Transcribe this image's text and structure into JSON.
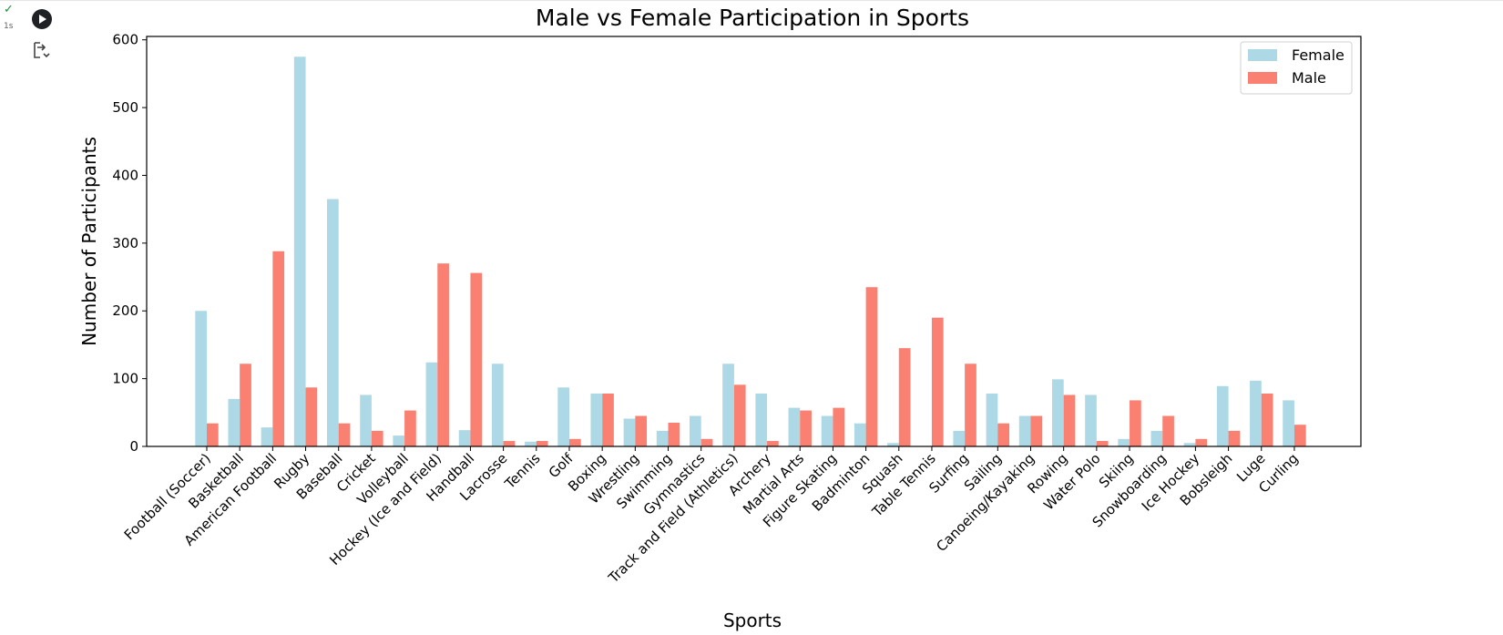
{
  "cell": {
    "status_icon": "check-icon",
    "exec_time": "1s",
    "run_icon": "play-icon",
    "output_icon": "output-toggle-icon"
  },
  "colors": {
    "female": "#add8e6",
    "male": "#fa8072",
    "axis": "#000000"
  },
  "chart_data": {
    "type": "bar",
    "title": "Male vs Female Participation in Sports",
    "xlabel": "Sports",
    "ylabel": "Number of Participants",
    "ylim": [
      0,
      605
    ],
    "yticks": [
      0,
      100,
      200,
      300,
      400,
      500,
      600
    ],
    "legend_position": "top-right",
    "grid": false,
    "categories": [
      "Football (Soccer)",
      "Basketball",
      "American Football",
      "Rugby",
      "Baseball",
      "Cricket",
      "Volleyball",
      "Hockey (Ice and Field)",
      "Handball",
      "Lacrosse",
      "Tennis",
      "Golf",
      "Boxing",
      "Wrestling",
      "Swimming",
      "Gymnastics",
      "Track and Field (Athletics)",
      "Archery",
      "Martial Arts",
      "Figure Skating",
      "Badminton",
      "Squash",
      "Table Tennis",
      "Surfing",
      "Sailing",
      "Canoeing/Kayaking",
      "Rowing",
      "Water Polo",
      "Skiing",
      "Snowboarding",
      "Ice Hockey",
      "Bobsleigh",
      "Luge",
      "Curling"
    ],
    "series": [
      {
        "name": "Female",
        "values": [
          200,
          70,
          28,
          575,
          365,
          76,
          16,
          124,
          24,
          122,
          7,
          87,
          78,
          41,
          23,
          45,
          122,
          78,
          57,
          45,
          34,
          5,
          0,
          23,
          78,
          45,
          99,
          76,
          11,
          23,
          5,
          89,
          97,
          68
        ]
      },
      {
        "name": "Male",
        "values": [
          34,
          122,
          288,
          87,
          34,
          23,
          53,
          270,
          256,
          8,
          8,
          11,
          78,
          45,
          35,
          11,
          91,
          8,
          53,
          57,
          235,
          145,
          190,
          122,
          34,
          45,
          76,
          8,
          68,
          45,
          11,
          23,
          78,
          32
        ]
      }
    ]
  }
}
